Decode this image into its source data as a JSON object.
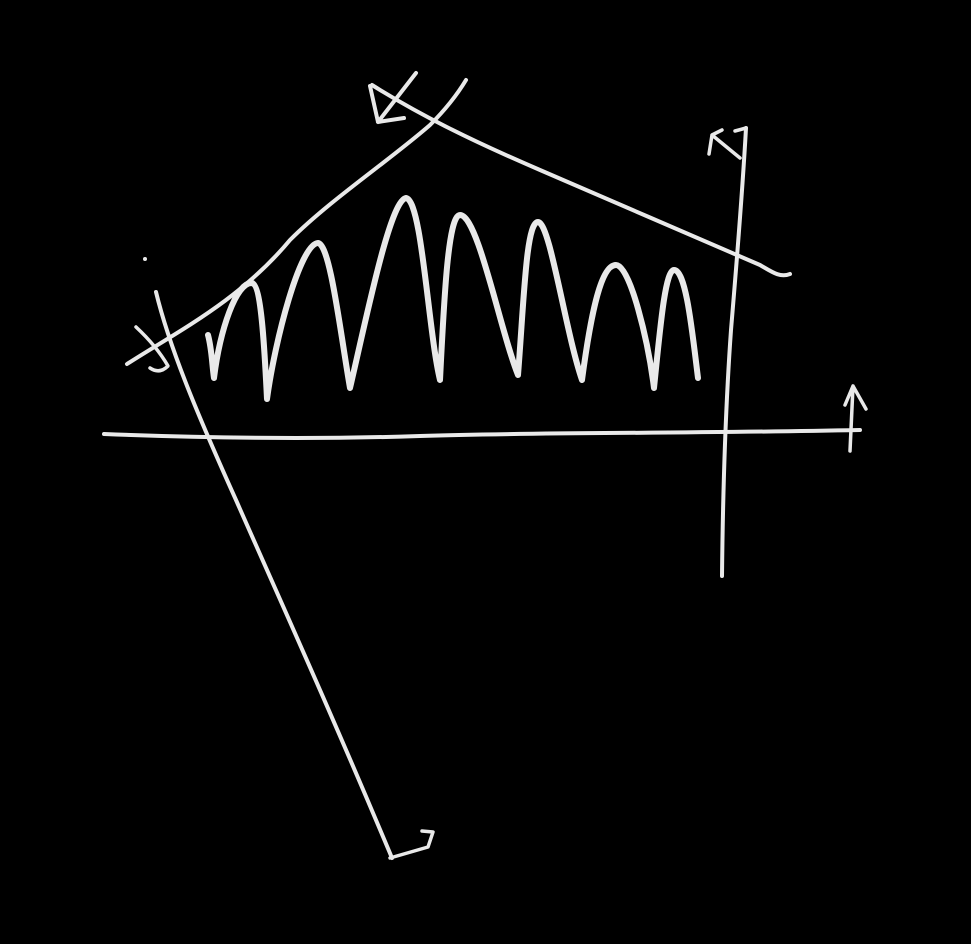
{
  "background_color": "#000000",
  "stroke_color": "#e9e9e9",
  "strokes": [
    {
      "name": "horizontal-axis-line"
    },
    {
      "name": "horizontal-axis-arrowhead"
    },
    {
      "name": "right-vertical-line"
    },
    {
      "name": "right-vertical-line-arrowhead"
    },
    {
      "name": "left-slanted-line"
    },
    {
      "name": "left-slanted-line-end-hook"
    },
    {
      "name": "upper-left-diagonal-line"
    },
    {
      "name": "upper-left-line-cross-mark"
    },
    {
      "name": "upper-right-diagonal-line"
    },
    {
      "name": "top-arrowhead"
    },
    {
      "name": "oscillating-wave"
    },
    {
      "name": "small-dot"
    }
  ]
}
